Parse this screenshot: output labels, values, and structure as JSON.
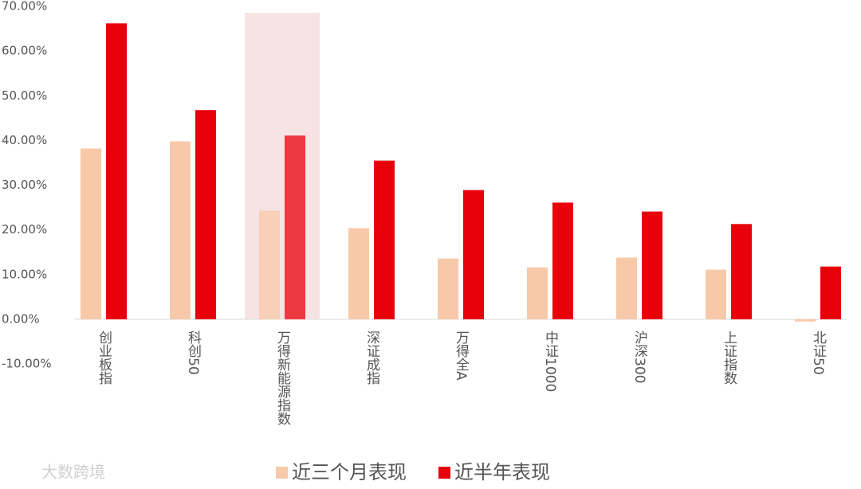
{
  "chart_data": {
    "type": "bar",
    "categories": [
      "创业板指",
      "科创50",
      "万得新能源指数",
      "深证成指",
      "万得全A",
      "中证1000",
      "沪深300",
      "上证指数",
      "北证50"
    ],
    "series": [
      {
        "name": "近三个月表现",
        "color": "#f8c9a9",
        "values": [
          38.2,
          39.8,
          24.3,
          20.4,
          13.6,
          11.6,
          13.8,
          11.1,
          -0.5
        ]
      },
      {
        "name": "近半年表现",
        "color": "#e8000b",
        "values": [
          66.2,
          46.8,
          41.1,
          35.5,
          28.9,
          26.1,
          24.1,
          21.3,
          11.8
        ]
      }
    ],
    "ylim": [
      -10,
      70
    ],
    "yticks": [
      {
        "value": 70,
        "label": "70.00%"
      },
      {
        "value": 60,
        "label": "60.00%"
      },
      {
        "value": 50,
        "label": "50.00%"
      },
      {
        "value": 40,
        "label": "40.00%"
      },
      {
        "value": 30,
        "label": "30.00%"
      },
      {
        "value": 20,
        "label": "20.00%"
      },
      {
        "value": 10,
        "label": "10.00%"
      },
      {
        "value": 0,
        "label": "0.00%"
      },
      {
        "value": -10,
        "label": "-10.00%"
      }
    ],
    "highlight_index": 2,
    "highlight_color": "#f7e3e4",
    "legend": "bottom",
    "watermark": "大数跨境"
  }
}
